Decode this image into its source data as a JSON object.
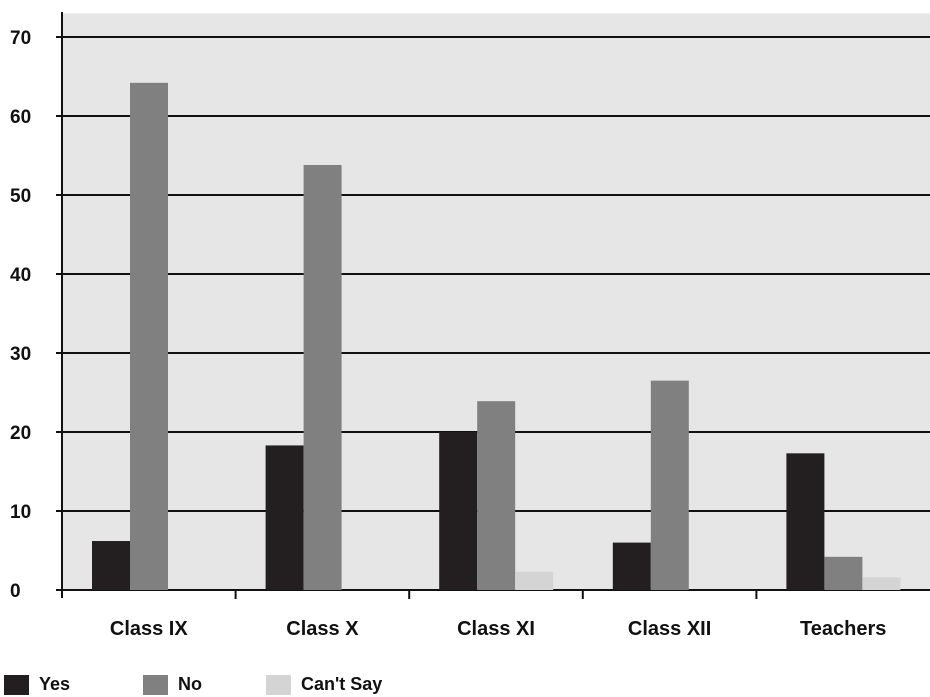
{
  "chart_data": {
    "type": "bar",
    "categories": [
      "Class IX",
      "Class X",
      "Class XI",
      "Class XII",
      "Teachers"
    ],
    "series": [
      {
        "name": "Yes",
        "color": "#231f20",
        "values": [
          6.2,
          18.3,
          20.0,
          6.0,
          17.3
        ]
      },
      {
        "name": "No",
        "color": "#808080",
        "values": [
          64.2,
          53.8,
          23.9,
          26.5,
          4.2
        ]
      },
      {
        "name": "Can't Say",
        "color": "#d4d4d4",
        "values": [
          0,
          0,
          2.3,
          0,
          1.6
        ]
      }
    ],
    "yticks": [
      "0",
      "10",
      "20",
      "30",
      "40",
      "50",
      "60",
      "70"
    ],
    "ylim": [
      0,
      73
    ],
    "grid": true,
    "plot_background": "#e6e6e6",
    "legend_position": "bottom-left",
    "title": "",
    "xlabel": "",
    "ylabel": ""
  }
}
